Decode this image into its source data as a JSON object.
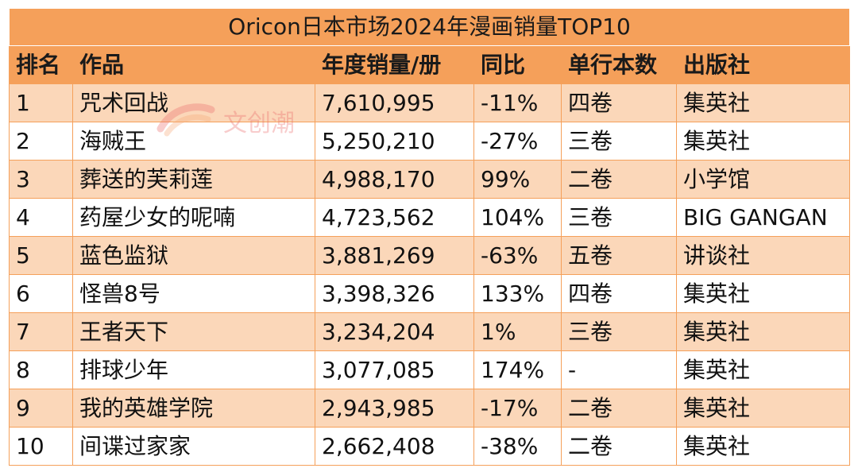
{
  "chart_data": {
    "type": "table",
    "title": "Oricon日本市场2024年漫画销量TOP10",
    "columns": [
      "排名",
      "作品",
      "年度销量/册",
      "同比",
      "单行本数",
      "出版社"
    ],
    "rows": [
      [
        "1",
        "咒术回战",
        "7,610,995",
        "-11%",
        "四卷",
        "集英社"
      ],
      [
        "2",
        "海贼王",
        "5,250,210",
        "-27%",
        "三卷",
        "集英社"
      ],
      [
        "3",
        "葬送的芙莉莲",
        "4,988,170",
        "99%",
        "二卷",
        "小学馆"
      ],
      [
        "4",
        "药屋少女的呢喃",
        "4,723,562",
        "104%",
        "三卷",
        "BIG GANGAN"
      ],
      [
        "5",
        "蓝色监狱",
        "3,881,269",
        "-63%",
        "五卷",
        "讲谈社"
      ],
      [
        "6",
        "怪兽8号",
        "3,398,326",
        "133%",
        "四卷",
        "集英社"
      ],
      [
        "7",
        "王者天下",
        "3,234,204",
        "1%",
        "三卷",
        "集英社"
      ],
      [
        "8",
        "排球少年",
        "3,077,085",
        "174%",
        "-",
        "集英社"
      ],
      [
        "9",
        "我的英雄学院",
        "2,943,985",
        "-17%",
        "二卷",
        "集英社"
      ],
      [
        "10",
        "间谍过家家",
        "2,662,408",
        "-38%",
        "二卷",
        "集英社"
      ]
    ]
  },
  "watermark": {
    "text": "文创潮",
    "logo_icon": "wenchuangchao-logo-icon",
    "color": "#eb6e6e"
  },
  "colors": {
    "header_bg": "#f5a05a",
    "odd_row_bg": "#fbd7b9",
    "even_row_bg": "#ffffff"
  }
}
